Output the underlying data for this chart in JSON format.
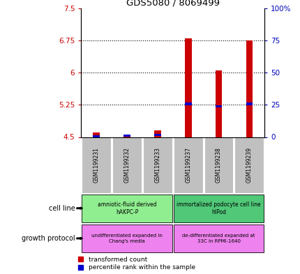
{
  "title": "GDS5080 / 8069499",
  "samples": [
    "GSM1199231",
    "GSM1199232",
    "GSM1199233",
    "GSM1199237",
    "GSM1199238",
    "GSM1199239"
  ],
  "red_values": [
    4.6,
    4.55,
    4.65,
    6.8,
    6.05,
    6.75
  ],
  "blue_values": [
    4.52,
    4.53,
    4.55,
    5.27,
    5.21,
    5.27
  ],
  "ylim_left": [
    4.5,
    7.5
  ],
  "ylim_right": [
    0,
    100
  ],
  "yticks_left": [
    4.5,
    5.25,
    6.0,
    6.75,
    7.5
  ],
  "ytick_labels_left": [
    "4.5",
    "5.25",
    "6",
    "6.75",
    "7.5"
  ],
  "yticks_right": [
    0,
    25,
    50,
    75,
    100
  ],
  "ytick_labels_right": [
    "0",
    "25",
    "50",
    "75",
    "100%"
  ],
  "bar_baseline": 4.5,
  "cell_line_groups": [
    {
      "label": "amniotic-fluid derived\nhAKPC-P",
      "samples": [
        0,
        1,
        2
      ],
      "color": "#90EE90"
    },
    {
      "label": "immortalized podocyte cell line\nhIPod",
      "samples": [
        3,
        4,
        5
      ],
      "color": "#50C878"
    }
  ],
  "growth_protocol_groups": [
    {
      "label": "undifferentiated expanded in\nChang's media",
      "samples": [
        0,
        1,
        2
      ],
      "color": "#EE82EE"
    },
    {
      "label": "de-differentiated expanded at\n33C in RPMI-1640",
      "samples": [
        3,
        4,
        5
      ],
      "color": "#EE82EE"
    }
  ],
  "legend_red_label": "transformed count",
  "legend_blue_label": "percentile rank within the sample",
  "red_color": "#CC0000",
  "blue_color": "#0000CC",
  "title_color": "#000000",
  "left_tick_color": "#CC0000",
  "right_tick_color": "#0000BB",
  "sample_label_bg": "#C0C0C0"
}
